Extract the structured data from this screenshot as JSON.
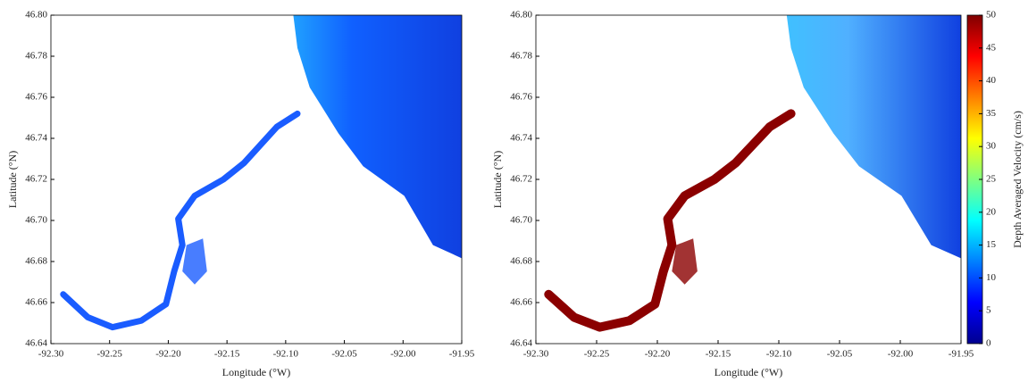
{
  "chart_data": [
    {
      "type": "map",
      "xlabel": "Longitude (°W)",
      "ylabel": "Latitude (°N)",
      "xlim": [
        -92.3,
        -91.95
      ],
      "ylim": [
        46.64,
        46.8
      ],
      "xticks": [
        {
          "value": -92.3,
          "label": "-92.30"
        },
        -92.25,
        {
          "value": -92.2,
          "label": "-92.20"
        },
        -92.15,
        {
          "value": -92.1,
          "label": "-92.10"
        },
        -92.05,
        {
          "value": -92.0,
          "label": "-92.00"
        },
        -91.95
      ],
      "yticks": [
        46.64,
        46.66,
        46.68,
        {
          "value": 46.7,
          "label": "46.70"
        },
        46.72,
        46.74,
        46.76,
        46.78,
        {
          "value": 46.8,
          "label": "46.80"
        }
      ],
      "color": "#1a5cff"
    },
    {
      "type": "map",
      "xlabel": "Longitude (°W)",
      "ylabel": "Latitude (°N)",
      "xlim": [
        -92.3,
        -91.95
      ],
      "ylim": [
        46.64,
        46.8
      ],
      "xticks": [
        {
          "value": -92.3,
          "label": "-92.30"
        },
        -92.25,
        {
          "value": -92.2,
          "label": "-92.20"
        },
        -92.15,
        {
          "value": -92.1,
          "label": "-92.10"
        },
        -92.05,
        {
          "value": -92.0,
          "label": "-92.00"
        },
        -91.95
      ],
      "yticks": [
        46.64,
        46.66,
        46.68,
        {
          "value": 46.7,
          "label": "46.70"
        },
        46.72,
        46.74,
        46.76,
        46.78,
        {
          "value": 46.8,
          "label": "46.80"
        }
      ],
      "color": "#8b0000",
      "colorbar": {
        "label": "Depth Averaged Velocity (cm/s)",
        "lim": [
          0,
          50
        ],
        "ticks": [
          0,
          5,
          10,
          15,
          20,
          25,
          30,
          35,
          40,
          45,
          50
        ],
        "colormap": [
          "#00008f",
          "#0000ff",
          "#0080ff",
          "#00ffff",
          "#80ff80",
          "#ffff00",
          "#ff8000",
          "#ff0000",
          "#800000"
        ]
      }
    }
  ]
}
